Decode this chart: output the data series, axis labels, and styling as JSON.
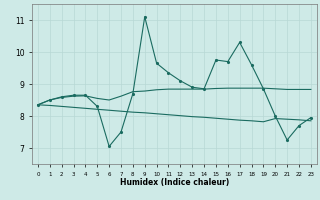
{
  "xlabel": "Humidex (Indice chaleur)",
  "bg_color": "#ceeae7",
  "grid_color": "#b8d8d5",
  "line_color": "#1a6b60",
  "x_ticks": [
    0,
    1,
    2,
    3,
    4,
    5,
    6,
    7,
    8,
    9,
    10,
    11,
    12,
    13,
    14,
    15,
    16,
    17,
    18,
    19,
    20,
    21,
    22,
    23
  ],
  "ylim": [
    6.5,
    11.5
  ],
  "xlim": [
    -0.5,
    23.5
  ],
  "yticks": [
    7,
    8,
    9,
    10,
    11
  ],
  "series1": {
    "x": [
      0,
      1,
      2,
      3,
      4,
      5,
      6,
      7,
      8,
      9,
      10,
      11,
      12,
      13,
      14,
      15,
      16,
      17,
      18,
      19,
      20,
      21,
      22,
      23
    ],
    "y": [
      8.35,
      8.5,
      8.6,
      8.65,
      8.65,
      8.3,
      7.05,
      7.5,
      8.7,
      11.1,
      9.65,
      9.35,
      9.1,
      8.9,
      8.85,
      9.75,
      9.7,
      10.3,
      9.6,
      8.85,
      8.0,
      7.25,
      7.7,
      7.95
    ]
  },
  "series2": {
    "x": [
      0,
      1,
      2,
      3,
      4,
      5,
      6,
      7,
      8,
      9,
      10,
      11,
      12,
      13,
      14,
      15,
      16,
      17,
      18,
      19,
      20,
      21,
      22,
      23
    ],
    "y": [
      8.35,
      8.5,
      8.58,
      8.62,
      8.63,
      8.55,
      8.5,
      8.62,
      8.76,
      8.78,
      8.82,
      8.84,
      8.84,
      8.84,
      8.84,
      8.86,
      8.87,
      8.87,
      8.87,
      8.87,
      8.85,
      8.83,
      8.83,
      8.83
    ]
  },
  "series3": {
    "x": [
      0,
      1,
      2,
      3,
      4,
      5,
      6,
      7,
      8,
      9,
      10,
      11,
      12,
      13,
      14,
      15,
      16,
      17,
      18,
      19,
      20,
      21,
      22,
      23
    ],
    "y": [
      8.35,
      8.33,
      8.3,
      8.27,
      8.24,
      8.21,
      8.18,
      8.15,
      8.12,
      8.1,
      8.07,
      8.04,
      8.01,
      7.98,
      7.96,
      7.93,
      7.9,
      7.87,
      7.85,
      7.82,
      7.92,
      7.9,
      7.88,
      7.85
    ]
  }
}
